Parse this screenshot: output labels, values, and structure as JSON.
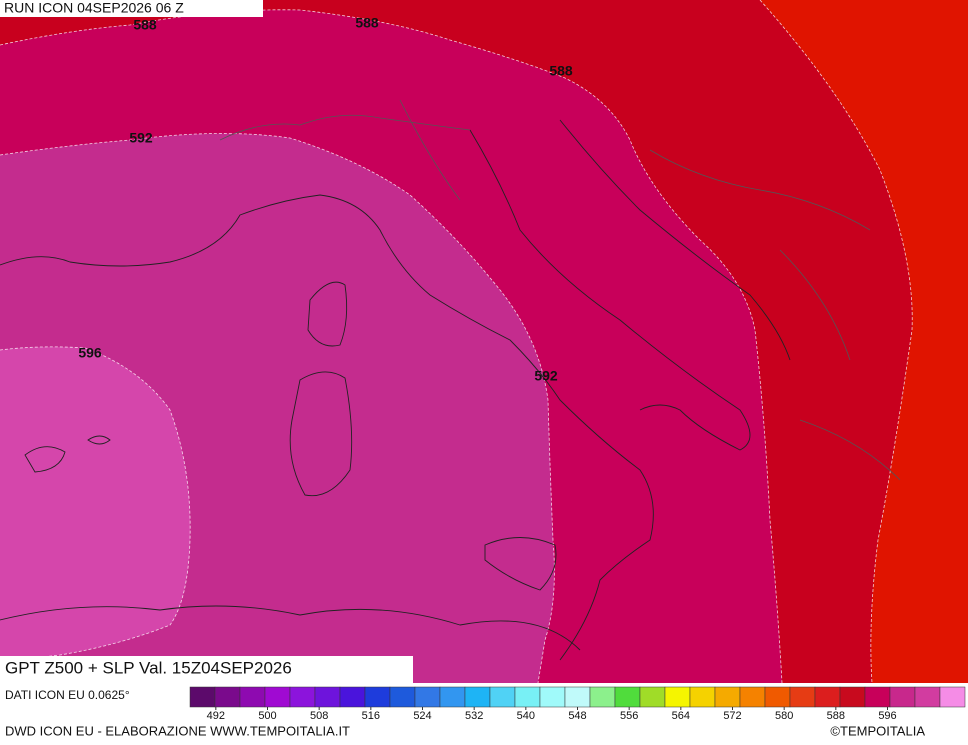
{
  "header": {
    "title": "RUN ICON 04SEP2026 06 Z"
  },
  "map": {
    "contour_labels": [
      588,
      588,
      588,
      592,
      592,
      596
    ],
    "product": "GPT Z500 + SLP Val. 15Z04SEP2026"
  },
  "colorbar": {
    "range": [
      488,
      608
    ],
    "colors": [
      "#5c0a6b",
      "#7a0a8c",
      "#8e0ab0",
      "#a00ad2",
      "#8c14dc",
      "#6e14dc",
      "#4a14dc",
      "#1e3cdc",
      "#1e5adc",
      "#3278e6",
      "#3296f0",
      "#1eb4f5",
      "#50d2f5",
      "#78f0f5",
      "#a0fafa",
      "#c0fafa",
      "#8cf08c",
      "#50dc3c",
      "#a0dc28",
      "#f5f500",
      "#f5d200",
      "#f5aa00",
      "#f58200",
      "#f05a00",
      "#e63c14",
      "#dc1e1e",
      "#c80a1e",
      "#c8005a",
      "#c8288c",
      "#d23ca0",
      "#f58ce6"
    ],
    "ticks": [
      492,
      500,
      508,
      516,
      524,
      532,
      540,
      548,
      556,
      564,
      572,
      580,
      588,
      596
    ]
  },
  "footer": {
    "source": "DATI ICON EU 0.0625°",
    "credit": "DWD ICON EU - ELABORAZIONE WWW.TEMPOITALIA.IT",
    "brand": "©TEMPOITALIA"
  }
}
